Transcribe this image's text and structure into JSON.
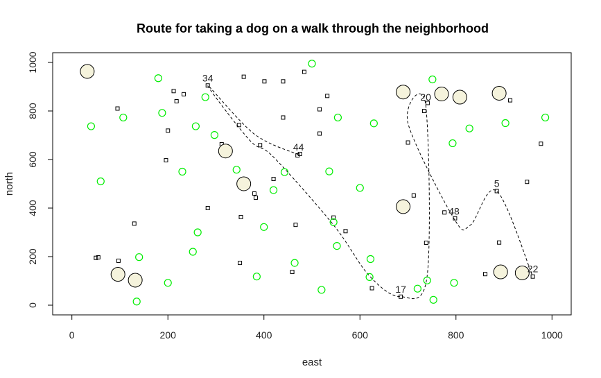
{
  "chart_data": {
    "type": "scatter",
    "title": "Route for taking a dog on a walk through the neighborhood",
    "xlabel": "east",
    "ylabel": "north",
    "xlim": [
      -40,
      1040
    ],
    "ylim": [
      -40,
      1040
    ],
    "xticks": [
      0,
      200,
      400,
      600,
      800,
      1000
    ],
    "yticks": [
      0,
      200,
      400,
      600,
      800,
      1000
    ],
    "colors": {
      "houses": "#000000",
      "trees": "#00ee00",
      "large": "#f5f3dc",
      "route": "#000000"
    },
    "houses": [
      [
        50,
        195
      ],
      [
        55,
        197
      ],
      [
        97,
        183
      ],
      [
        95,
        810
      ],
      [
        130,
        336
      ],
      [
        196,
        597
      ],
      [
        200,
        719
      ],
      [
        212,
        882
      ],
      [
        218,
        840
      ],
      [
        233,
        869
      ],
      [
        283,
        400
      ],
      [
        283,
        905
      ],
      [
        312,
        663
      ],
      [
        352,
        363
      ],
      [
        348,
        742
      ],
      [
        358,
        941
      ],
      [
        350,
        174
      ],
      [
        380,
        460
      ],
      [
        383,
        443
      ],
      [
        392,
        659
      ],
      [
        401,
        922
      ],
      [
        420,
        520
      ],
      [
        440,
        922
      ],
      [
        440,
        773
      ],
      [
        459,
        137
      ],
      [
        466,
        331
      ],
      [
        470,
        617
      ],
      [
        475,
        623
      ],
      [
        484,
        961
      ],
      [
        516,
        807
      ],
      [
        516,
        707
      ],
      [
        532,
        862
      ],
      [
        545,
        361
      ],
      [
        570,
        305
      ],
      [
        625,
        70
      ],
      [
        685,
        35
      ],
      [
        734,
        800
      ],
      [
        738,
        257
      ],
      [
        741,
        833
      ],
      [
        700,
        670
      ],
      [
        712,
        452
      ],
      [
        776,
        382
      ],
      [
        798,
        358
      ],
      [
        861,
        128
      ],
      [
        885,
        470
      ],
      [
        890,
        258
      ],
      [
        913,
        844
      ],
      [
        948,
        508
      ],
      [
        960,
        118
      ],
      [
        977,
        665
      ]
    ],
    "trees": [
      [
        40,
        737
      ],
      [
        60,
        510
      ],
      [
        107,
        773
      ],
      [
        135,
        15
      ],
      [
        140,
        198
      ],
      [
        180,
        935
      ],
      [
        188,
        792
      ],
      [
        200,
        92
      ],
      [
        230,
        550
      ],
      [
        252,
        220
      ],
      [
        258,
        737
      ],
      [
        262,
        300
      ],
      [
        278,
        857
      ],
      [
        297,
        701
      ],
      [
        343,
        558
      ],
      [
        385,
        118
      ],
      [
        400,
        322
      ],
      [
        420,
        474
      ],
      [
        443,
        548
      ],
      [
        464,
        174
      ],
      [
        500,
        995
      ],
      [
        520,
        63
      ],
      [
        536,
        551
      ],
      [
        545,
        342
      ],
      [
        552,
        244
      ],
      [
        554,
        773
      ],
      [
        600,
        483
      ],
      [
        620,
        116
      ],
      [
        622,
        190
      ],
      [
        629,
        749
      ],
      [
        720,
        68
      ],
      [
        740,
        102
      ],
      [
        751,
        930
      ],
      [
        753,
        22
      ],
      [
        793,
        667
      ],
      [
        796,
        92
      ],
      [
        828,
        728
      ],
      [
        903,
        750
      ],
      [
        986,
        773
      ]
    ],
    "large": [
      [
        32,
        963
      ],
      [
        96,
        127
      ],
      [
        132,
        103
      ],
      [
        320,
        635
      ],
      [
        358,
        500
      ],
      [
        690,
        406
      ],
      [
        690,
        878
      ],
      [
        770,
        870
      ],
      [
        808,
        857
      ],
      [
        890,
        873
      ],
      [
        893,
        137
      ],
      [
        938,
        133
      ]
    ],
    "route_labels": [
      {
        "text": "34",
        "x": 283,
        "y": 905
      },
      {
        "text": "44",
        "x": 472,
        "y": 620
      },
      {
        "text": "20",
        "x": 737,
        "y": 826
      },
      {
        "text": "48",
        "x": 796,
        "y": 356
      },
      {
        "text": "5",
        "x": 885,
        "y": 470
      },
      {
        "text": "22",
        "x": 960,
        "y": 118
      },
      {
        "text": "17",
        "x": 685,
        "y": 35
      }
    ],
    "route": [
      [
        472,
        620
      ],
      [
        380,
        705
      ],
      [
        283,
        905
      ],
      [
        370,
        680
      ],
      [
        420,
        610
      ],
      [
        545,
        330
      ],
      [
        620,
        120
      ],
      [
        685,
        35
      ],
      [
        740,
        120
      ],
      [
        737,
        826
      ],
      [
        700,
        750
      ],
      [
        796,
        356
      ],
      [
        830,
        330
      ],
      [
        885,
        470
      ],
      [
        960,
        118
      ]
    ]
  }
}
